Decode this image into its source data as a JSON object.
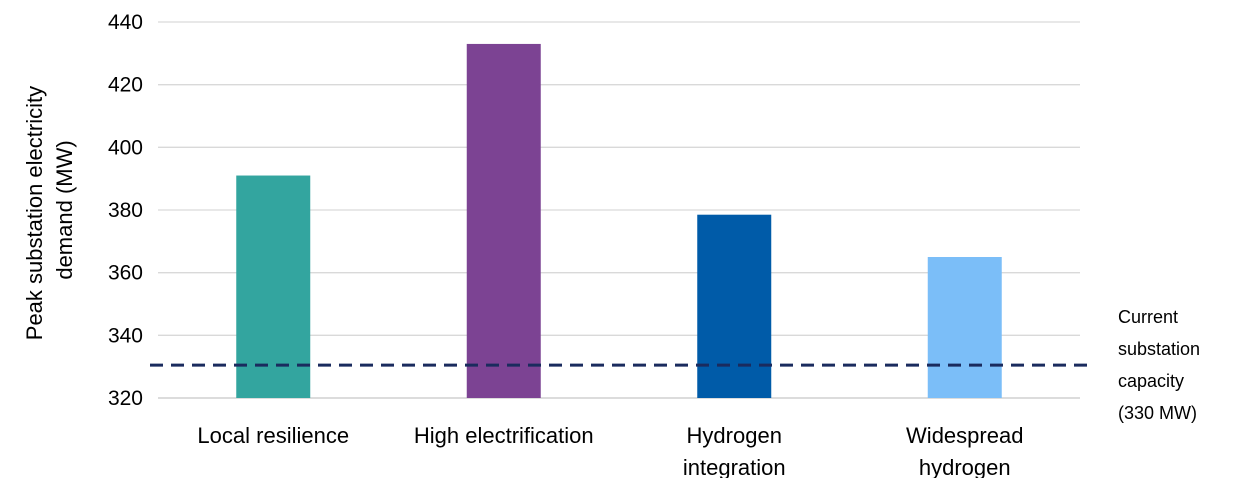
{
  "chart_data": {
    "type": "bar",
    "categories": [
      "Local resilience",
      "High electrification",
      "Hydrogen integration",
      "Widespread hydrogen"
    ],
    "category_lines": [
      [
        "Local resilience"
      ],
      [
        "High electrification"
      ],
      [
        "Hydrogen",
        "integration"
      ],
      [
        "Widespread",
        "hydrogen"
      ]
    ],
    "values": [
      391,
      433,
      378.5,
      365
    ],
    "colors": [
      "#33a59f",
      "#7c4393",
      "#005ba8",
      "#7bbef8"
    ],
    "ylabel_lines": [
      "Peak substation electricity",
      "demand (MW)"
    ],
    "ylim": [
      320,
      440
    ],
    "yticks": [
      320,
      340,
      360,
      380,
      400,
      420,
      440
    ],
    "grid": true,
    "reference_line": {
      "value": 330.5,
      "color": "#1a2b5e",
      "style": "dashed",
      "label_lines": [
        "Current",
        "substation",
        "capacity",
        "(330 MW)"
      ]
    }
  }
}
